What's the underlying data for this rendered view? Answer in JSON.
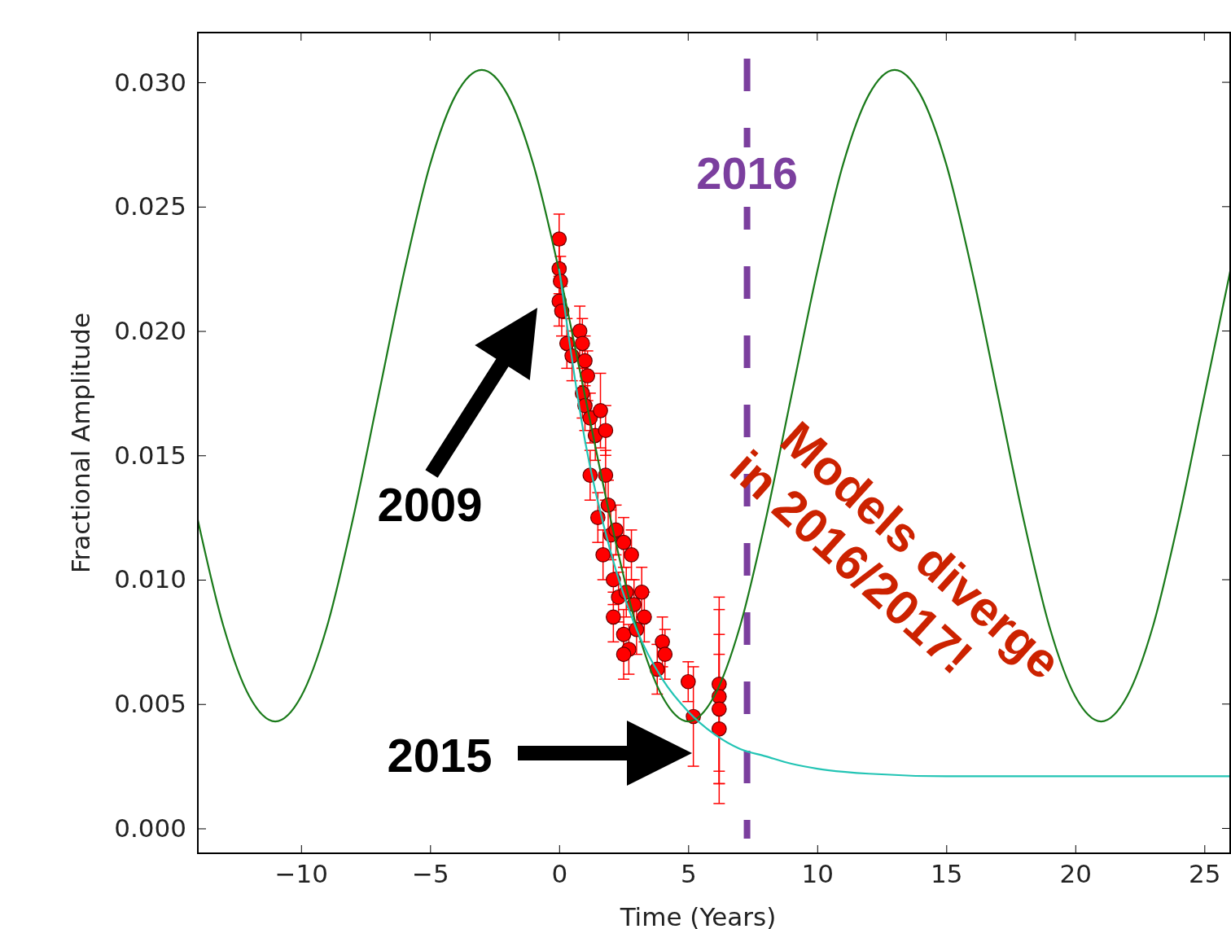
{
  "chart_data": {
    "type": "scatter",
    "xlabel": "Time (Years)",
    "ylabel": "Fractional Amplitude",
    "xlim": [
      -14,
      26
    ],
    "ylim": [
      -0.001,
      0.032
    ],
    "xticks": [
      {
        "value": -10,
        "label": "−10"
      },
      {
        "value": -5,
        "label": "−5"
      },
      0,
      5,
      10,
      15,
      20,
      25
    ],
    "yticks": [
      {
        "value": 0,
        "label": "0.000"
      },
      {
        "value": 0.005,
        "label": "0.005"
      },
      {
        "value": 0.01,
        "label": "0.010"
      },
      {
        "value": 0.015,
        "label": "0.015"
      },
      {
        "value": 0.02,
        "label": "0.020"
      },
      {
        "value": 0.025,
        "label": "0.025"
      },
      {
        "value": 0.03,
        "label": "0.030"
      }
    ],
    "grid": false,
    "series": [
      {
        "type": "line",
        "color": "#1a7a1a",
        "x": [
          -14,
          -13,
          -12,
          -11,
          -10,
          -9,
          -8,
          -7,
          -6,
          -5,
          -4,
          -3,
          -2,
          -1,
          0,
          1,
          2,
          3,
          4,
          5,
          6,
          7,
          8,
          9,
          10,
          11,
          12,
          13,
          14,
          15,
          16,
          17,
          18,
          19,
          20,
          21,
          22,
          23,
          24,
          25,
          26
        ],
        "values": [
          0.0124,
          0.0081,
          0.0053,
          0.0043,
          0.0053,
          0.0081,
          0.0124,
          0.0174,
          0.0224,
          0.0267,
          0.0295,
          0.0305,
          0.0295,
          0.0267,
          0.0224,
          0.0174,
          0.0124,
          0.0081,
          0.0053,
          0.0043,
          0.0053,
          0.0081,
          0.0124,
          0.0174,
          0.0224,
          0.0267,
          0.0295,
          0.0305,
          0.0295,
          0.0267,
          0.0224,
          0.0174,
          0.0124,
          0.0081,
          0.0053,
          0.0043,
          0.0053,
          0.0081,
          0.0124,
          0.0174,
          0.0224
        ]
      },
      {
        "type": "line",
        "color": "#22c4b4",
        "x": [
          0,
          1,
          2,
          3,
          4,
          5,
          6,
          7,
          8,
          9,
          10,
          12,
          15,
          20,
          26
        ],
        "values": [
          0.0225,
          0.0156,
          0.0111,
          0.008,
          0.006,
          0.0047,
          0.0038,
          0.0032,
          0.0029,
          0.0026,
          0.0024,
          0.0022,
          0.0021,
          0.0021,
          0.0021
        ]
      },
      {
        "color": "#ff0000",
        "marker": "circle",
        "x": [
          0,
          0,
          0.05,
          0,
          0.1,
          0.3,
          0.5,
          0.8,
          0.9,
          1.0,
          1.1,
          0.9,
          1.0,
          1.2,
          1.4,
          1.6,
          1.8,
          1.2,
          1.8,
          1.9,
          1.5,
          2.0,
          1.7,
          2.2,
          2.5,
          2.8,
          2.1,
          2.3,
          2.1,
          2.6,
          2.9,
          3.2,
          3.3,
          2.5,
          2.7,
          2.5,
          3.0,
          4.0,
          4.1,
          3.8,
          5.0,
          5.2,
          6.2,
          6.2,
          6.2,
          6.2
        ],
        "values": [
          0.0237,
          0.0225,
          0.022,
          0.0212,
          0.0208,
          0.0195,
          0.019,
          0.02,
          0.0195,
          0.0188,
          0.0182,
          0.0175,
          0.017,
          0.0165,
          0.0158,
          0.0168,
          0.016,
          0.0142,
          0.0142,
          0.013,
          0.0125,
          0.0118,
          0.011,
          0.012,
          0.0115,
          0.011,
          0.01,
          0.0093,
          0.0085,
          0.0095,
          0.009,
          0.0095,
          0.0085,
          0.0078,
          0.0072,
          0.007,
          0.008,
          0.0075,
          0.007,
          0.0064,
          0.0059,
          0.0045,
          0.0058,
          0.0053,
          0.0048,
          0.004
        ],
        "errors": [
          0.001,
          0.001,
          0.001,
          0.001,
          0.001,
          0.001,
          0.001,
          0.001,
          0.001,
          0.001,
          0.001,
          0.001,
          0.001,
          0.001,
          0.001,
          0.0015,
          0.001,
          0.001,
          0.001,
          0.001,
          0.001,
          0.001,
          0.001,
          0.001,
          0.001,
          0.001,
          0.001,
          0.001,
          0.001,
          0.001,
          0.001,
          0.001,
          0.001,
          0.001,
          0.001,
          0.001,
          0.001,
          0.001,
          0.001,
          0.001,
          0.0008,
          0.002,
          0.0035,
          0.0035,
          0.003,
          0.003
        ]
      }
    ],
    "ref_lines": [
      {
        "axis": "x",
        "value": 7.28,
        "color": "#7b3f9e",
        "line_style": "dashed"
      }
    ],
    "annotations": [
      "2016",
      "2009",
      "2015",
      "Models diverge\nin 2016/2017!"
    ]
  }
}
